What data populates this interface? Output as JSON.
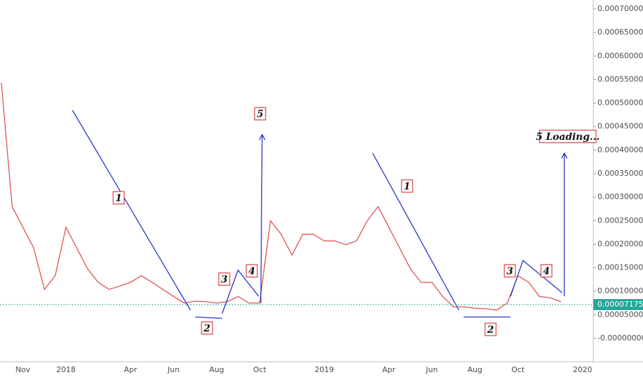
{
  "chart_data": {
    "type": "line",
    "color": "#e05050",
    "categories": [
      null,
      null,
      "Nov",
      null,
      null,
      null,
      "2018",
      null,
      null,
      null,
      null,
      null,
      "Apr",
      null,
      null,
      null,
      "Jun",
      null,
      null,
      null,
      "Aug",
      null,
      null,
      null,
      "Oct",
      null,
      null,
      null,
      null,
      null,
      "2019",
      null,
      null,
      null,
      null,
      null,
      "Apr",
      null,
      null,
      null,
      "Jun",
      null,
      null,
      null,
      "Aug",
      null,
      null,
      null,
      "Oct",
      null,
      null,
      null,
      null,
      null,
      "2020"
    ],
    "values": [
      0.000543,
      0.00028,
      0.000236,
      0.000192,
      0.000104,
      0.000133,
      0.000236,
      0.000192,
      0.000148,
      0.000119,
      0.000104,
      0.000111,
      0.000119,
      0.000133,
      0.000119,
      0.000104,
      8.9e-05,
      7.5e-05,
      7.9e-05,
      7.8e-05,
      7.5e-05,
      7.8e-05,
      8.9e-05,
      7.5e-05,
      7.5e-05,
      0.00025,
      0.000221,
      0.000177,
      0.000221,
      0.000221,
      0.000207,
      0.000207,
      0.000199,
      0.000207,
      0.00025,
      0.00028,
      0.000236,
      0.000192,
      0.000148,
      0.000119,
      0.000119,
      8.9e-05,
      6.7e-05,
      6.7e-05,
      6.4e-05,
      6.3e-05,
      6e-05,
      7.5e-05,
      0.000133,
      0.000119,
      8.9e-05,
      8.6e-05,
      7.8e-05,
      null,
      null
    ],
    "ylim": [
      -4.98e-05,
      0.000719
    ],
    "yticks": [
      {
        "value": 0,
        "label": "-0.00000000"
      },
      {
        "value": 5e-05,
        "label": "0.00005000"
      },
      {
        "value": 0.0001,
        "label": "0.00010000"
      },
      {
        "value": 0.00015,
        "label": "0.00015000"
      },
      {
        "value": 0.0002,
        "label": "0.00020000"
      },
      {
        "value": 0.00025,
        "label": "0.00025000"
      },
      {
        "value": 0.0003,
        "label": "0.00030000"
      },
      {
        "value": 0.00035,
        "label": "0.00035000"
      },
      {
        "value": 0.0004,
        "label": "0.00040000"
      },
      {
        "value": 0.00045,
        "label": "0.00045000"
      },
      {
        "value": 0.0005,
        "label": "0.00050000"
      },
      {
        "value": 0.00055,
        "label": "0.00055000"
      },
      {
        "value": 0.0006,
        "label": "0.00060000"
      },
      {
        "value": 0.00065,
        "label": "0.00065000"
      },
      {
        "value": 0.0007,
        "label": "0.00070000"
      }
    ],
    "last_price": {
      "value": 7.175e-05,
      "label": "0.00007175"
    },
    "annotations": [
      "1",
      "2",
      "3",
      "4",
      "5",
      "1",
      "2",
      "3",
      "4",
      "5 Loading..."
    ]
  }
}
